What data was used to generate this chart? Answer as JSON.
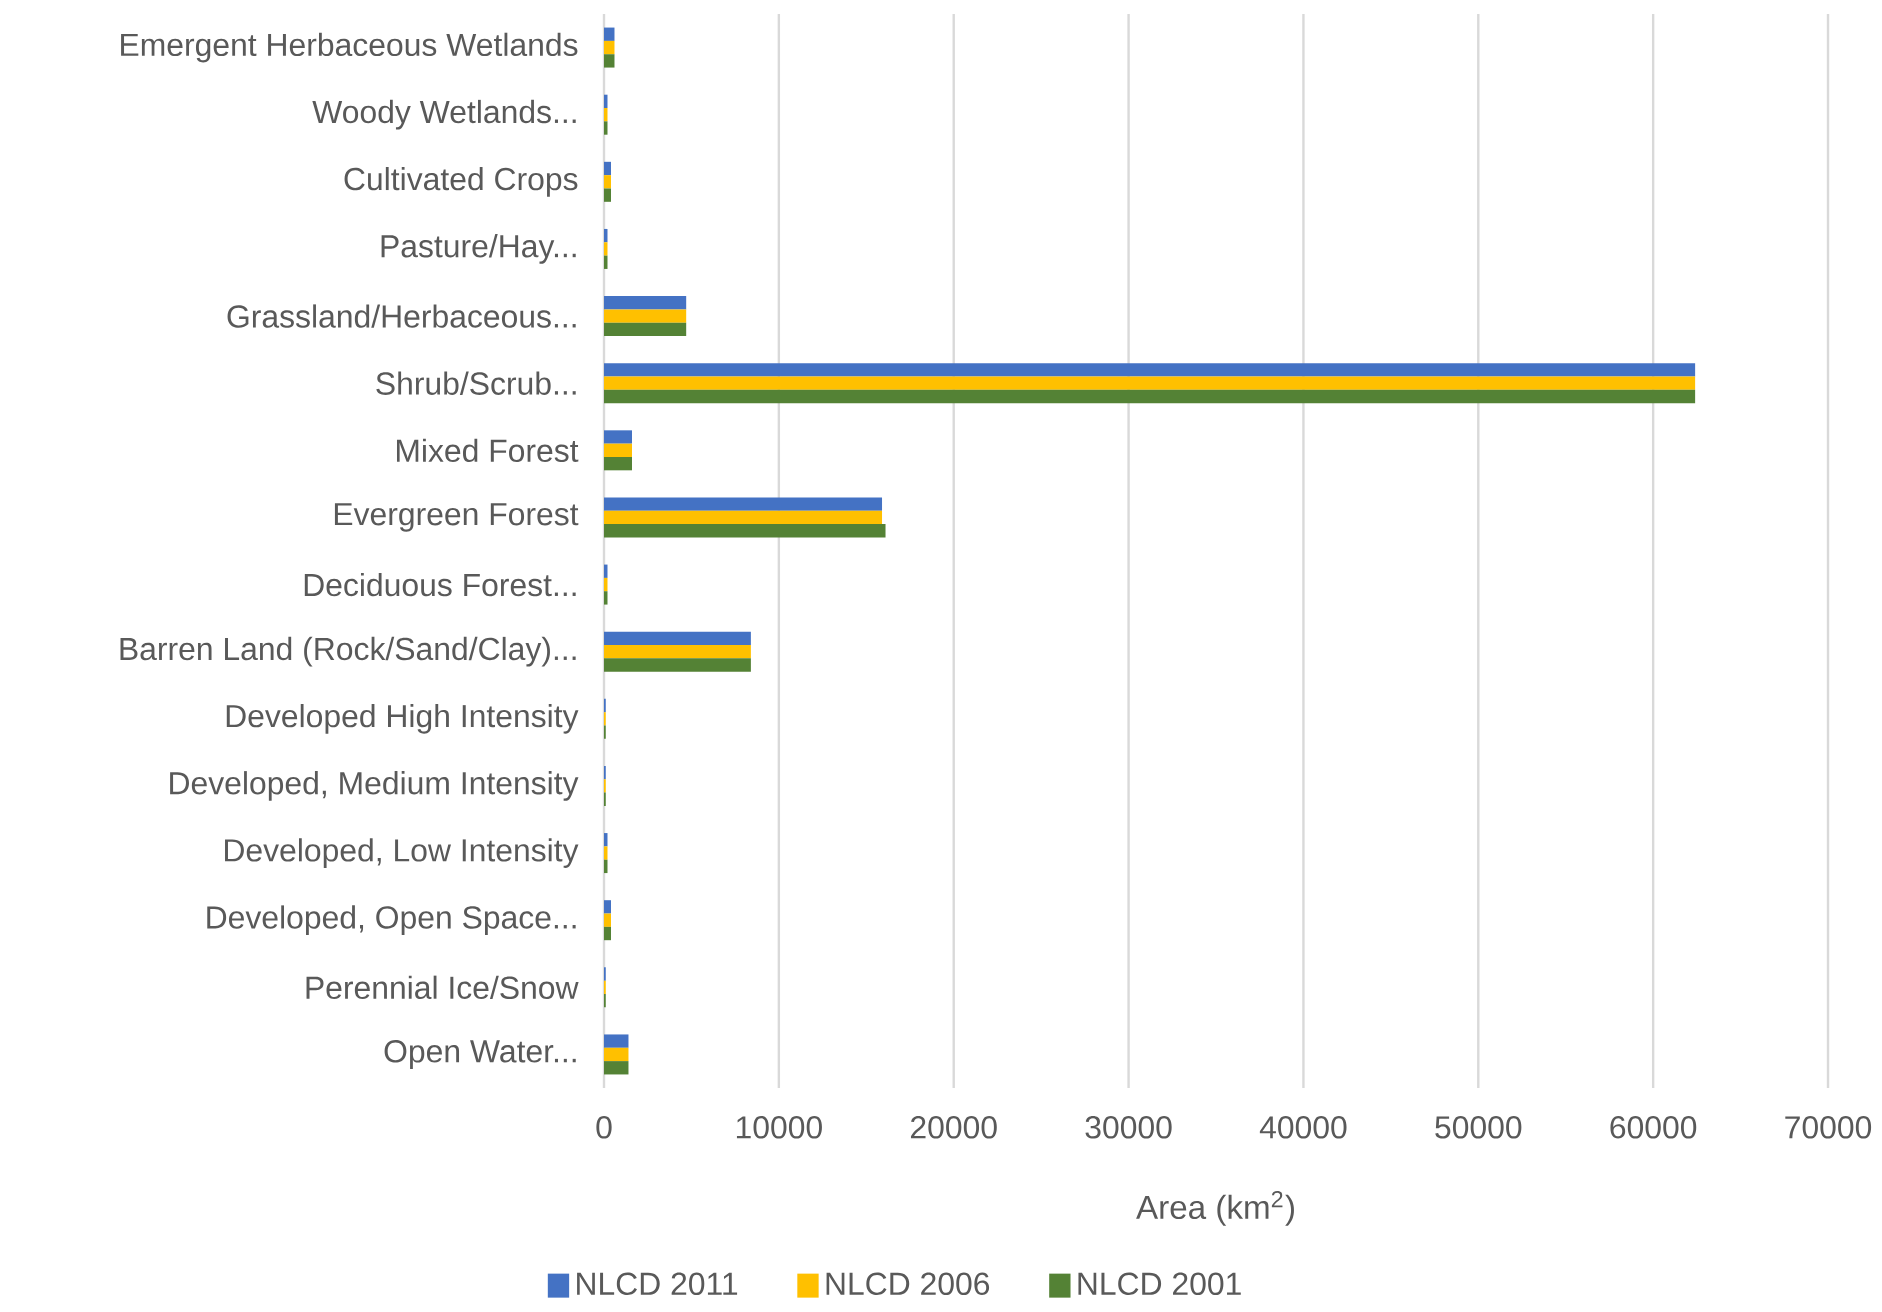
{
  "chart_data": {
    "type": "bar",
    "orientation": "horizontal",
    "categories": [
      "Emergent Herbaceous Wetlands",
      "Woody Wetlands...",
      "Cultivated Crops",
      "Pasture/Hay...",
      "Grassland/Herbaceous...",
      "Shrub/Scrub...",
      "Mixed Forest",
      "Evergreen Forest",
      "Deciduous Forest...",
      "Barren Land (Rock/Sand/Clay)...",
      "Developed High Intensity",
      "Developed, Medium Intensity",
      "Developed, Low Intensity",
      "Developed, Open Space...",
      "Perennial Ice/Snow",
      "Open Water..."
    ],
    "series": [
      {
        "name": "NLCD 2011",
        "color": "#4472c4",
        "values": [
          600,
          200,
          400,
          200,
          4700,
          62400,
          1600,
          15900,
          200,
          8400,
          100,
          100,
          200,
          400,
          100,
          1400
        ]
      },
      {
        "name": "NLCD 2006",
        "color": "#ffc000",
        "values": [
          600,
          200,
          400,
          200,
          4700,
          62400,
          1600,
          15900,
          200,
          8400,
          100,
          100,
          200,
          400,
          100,
          1400
        ]
      },
      {
        "name": "NLCD 2001",
        "color": "#548235",
        "values": [
          600,
          200,
          400,
          200,
          4700,
          62400,
          1600,
          16100,
          200,
          8400,
          100,
          100,
          200,
          400,
          100,
          1400
        ]
      }
    ],
    "xlabel": "Area (km$^{2}$)",
    "xlim": [
      0,
      70000
    ],
    "xticks": [
      0,
      10000,
      20000,
      30000,
      40000,
      50000,
      60000,
      70000
    ],
    "grid": "x",
    "legend": "bottom"
  }
}
